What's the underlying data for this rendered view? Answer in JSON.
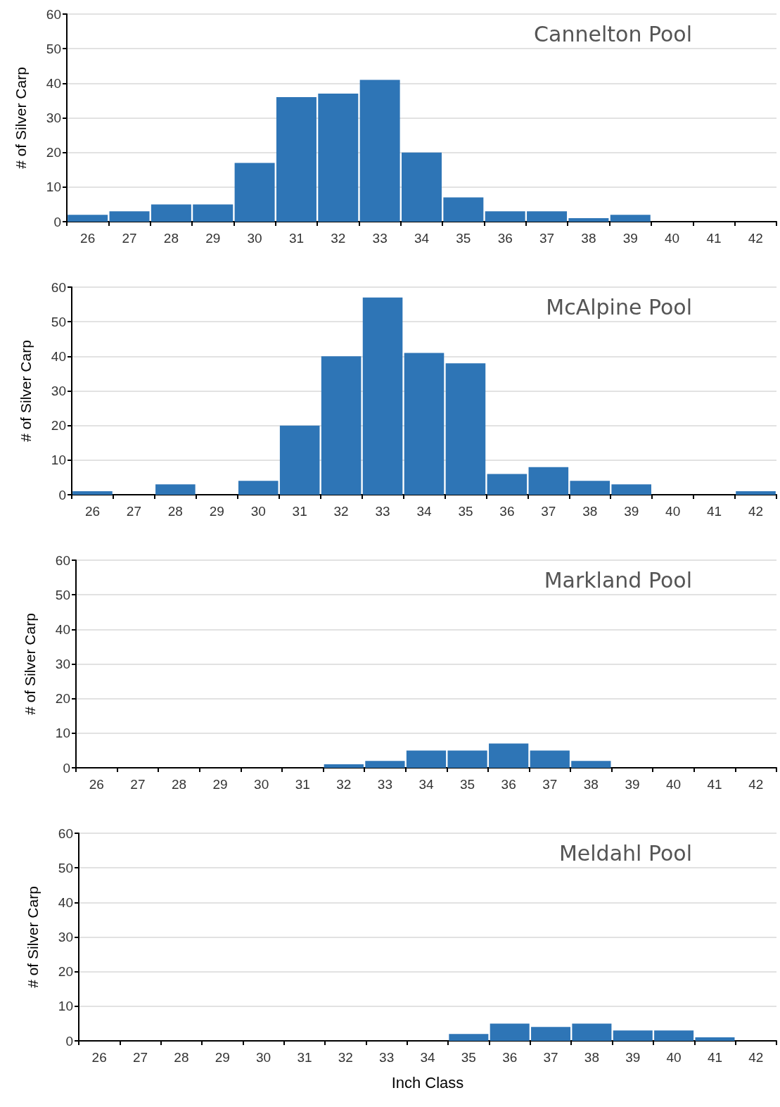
{
  "chart_data": [
    {
      "type": "bar",
      "title": "Cannelton Pool",
      "ylabel": "# of Silver Carp",
      "categories": [
        "26",
        "27",
        "28",
        "29",
        "30",
        "31",
        "32",
        "33",
        "34",
        "35",
        "36",
        "37",
        "38",
        "39",
        "40",
        "41",
        "42"
      ],
      "color": "#2e75b6",
      "values": [
        2,
        3,
        5,
        5,
        17,
        36,
        37,
        41,
        20,
        7,
        3,
        3,
        1,
        2,
        0,
        0,
        0
      ],
      "ylim": [
        0,
        60
      ],
      "yticks": [
        0,
        10,
        20,
        30,
        40,
        50,
        60
      ],
      "grid": "y"
    },
    {
      "type": "bar",
      "title": "McAlpine Pool",
      "ylabel": "# of Silver Carp",
      "categories": [
        "26",
        "27",
        "28",
        "29",
        "30",
        "31",
        "32",
        "33",
        "34",
        "35",
        "36",
        "37",
        "38",
        "39",
        "40",
        "41",
        "42"
      ],
      "color": "#2e75b6",
      "values": [
        1,
        0,
        3,
        0,
        4,
        20,
        40,
        57,
        41,
        38,
        6,
        8,
        4,
        3,
        0,
        0,
        1
      ],
      "ylim": [
        0,
        60
      ],
      "yticks": [
        0,
        10,
        20,
        30,
        40,
        50,
        60
      ],
      "grid": "y"
    },
    {
      "type": "bar",
      "title": "Markland Pool",
      "ylabel": "# of Silver Carp",
      "categories": [
        "26",
        "27",
        "28",
        "29",
        "30",
        "31",
        "32",
        "33",
        "34",
        "35",
        "36",
        "37",
        "38",
        "39",
        "40",
        "41",
        "42"
      ],
      "color": "#2e75b6",
      "values": [
        0,
        0,
        0,
        0,
        0,
        0,
        1,
        2,
        5,
        5,
        7,
        5,
        2,
        0,
        0,
        0,
        0
      ],
      "ylim": [
        0,
        60
      ],
      "yticks": [
        0,
        10,
        20,
        30,
        40,
        50,
        60
      ],
      "grid": "y"
    },
    {
      "type": "bar",
      "title": "Meldahl Pool",
      "ylabel": "# of Silver Carp",
      "xlabel": "Inch Class",
      "categories": [
        "26",
        "27",
        "28",
        "29",
        "30",
        "31",
        "32",
        "33",
        "34",
        "35",
        "36",
        "37",
        "38",
        "39",
        "40",
        "41",
        "42"
      ],
      "color": "#2e75b6",
      "values": [
        0,
        0,
        0,
        0,
        0,
        0,
        0,
        0,
        0,
        2,
        5,
        4,
        5,
        3,
        3,
        1,
        0
      ],
      "ylim": [
        0,
        60
      ],
      "yticks": [
        0,
        10,
        20,
        30,
        40,
        50,
        60
      ],
      "grid": "y"
    }
  ]
}
